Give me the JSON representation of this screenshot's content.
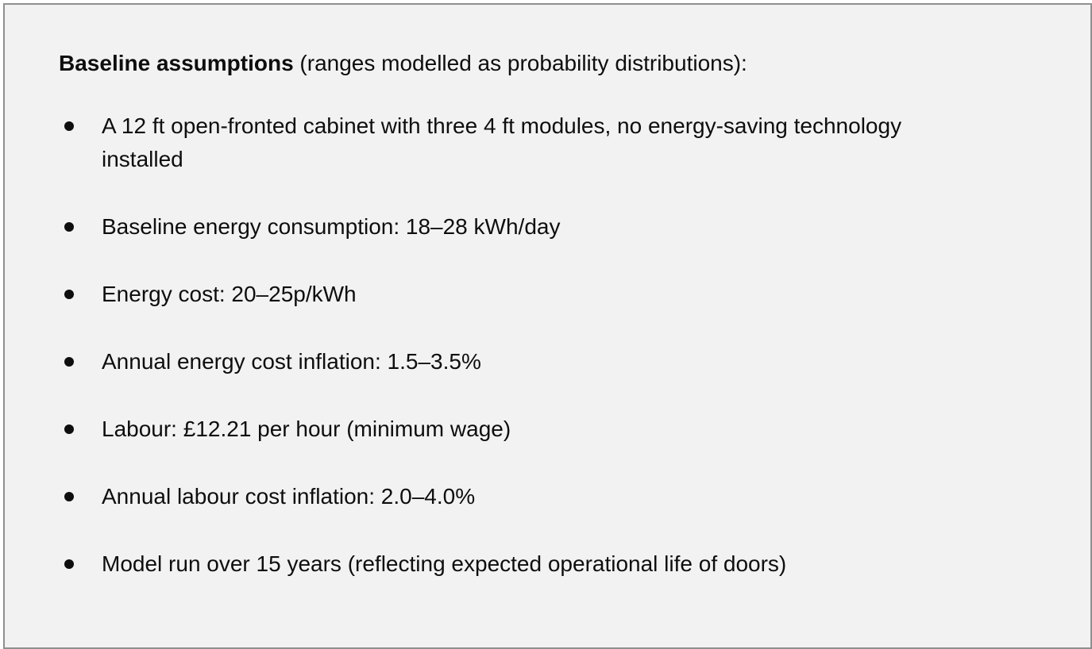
{
  "panel": {
    "heading": {
      "bold": "Baseline assumptions",
      "rest": " (ranges modelled as probability distributions):"
    },
    "bullets": [
      "A 12 ft open-fronted cabinet with three 4 ft modules, no energy-saving technology\ninstalled",
      "Baseline energy consumption: 18–28 kWh/day",
      "Energy cost: 20–25p/kWh",
      "Annual energy cost inflation: 1.5–3.5%",
      "Labour: £12.21 per hour (minimum wage)",
      "Annual labour cost inflation: 2.0–4.0%",
      "Model run over 15 years (reflecting expected operational life of doors)"
    ]
  },
  "colors": {
    "panel_background": "#f2f2f2",
    "panel_border": "#8f8f8f",
    "text": "#0e0e0e"
  }
}
